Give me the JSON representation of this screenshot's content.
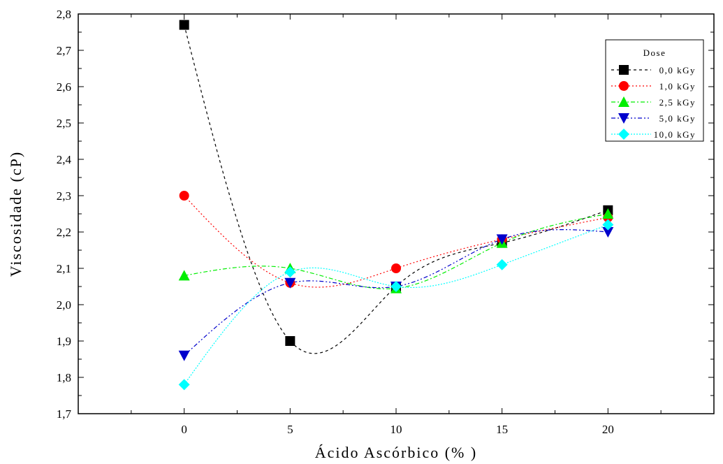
{
  "chart_data": {
    "type": "scatter",
    "xlabel": "Ácido Ascórbico (% )",
    "ylabel": "Viscosidade (cP)",
    "xlim": [
      -5,
      25
    ],
    "ylim": [
      1.7,
      2.8
    ],
    "x_ticks": [
      "0",
      "5",
      "10",
      "15",
      "20"
    ],
    "y_ticks": [
      "1,7",
      "1,8",
      "1,9",
      "2,0",
      "2,1",
      "2,2",
      "2,3",
      "2,4",
      "2,5",
      "2,6",
      "2,7",
      "2,8"
    ],
    "grid": false,
    "legend": {
      "title": "Dose",
      "position": "top-right"
    },
    "x": [
      0,
      5,
      10,
      15,
      20
    ],
    "series": [
      {
        "name": "0,0 kGy",
        "marker": "square",
        "color": "#000000",
        "dash": "4,4",
        "values": [
          2.77,
          1.9,
          2.05,
          2.17,
          2.26
        ]
      },
      {
        "name": "1,0 kGy",
        "marker": "circle",
        "color": "#ff0000",
        "dash": "2,3",
        "values": [
          2.3,
          2.06,
          2.1,
          2.18,
          2.24
        ]
      },
      {
        "name": "2,5 kGy",
        "marker": "triangle-up",
        "color": "#00ee00",
        "dash": "6,3,2,3",
        "values": [
          2.08,
          2.1,
          2.045,
          2.17,
          2.25
        ]
      },
      {
        "name": "5,0 kGy",
        "marker": "triangle-down",
        "color": "#0000cc",
        "dash": "6,3,2,3,2,3",
        "values": [
          1.86,
          2.06,
          2.05,
          2.18,
          2.2
        ]
      },
      {
        "name": "10,0 kGy",
        "marker": "diamond",
        "color": "#00ffff",
        "dash": "2,2",
        "values": [
          1.78,
          2.09,
          2.05,
          2.11,
          2.22
        ]
      }
    ]
  }
}
